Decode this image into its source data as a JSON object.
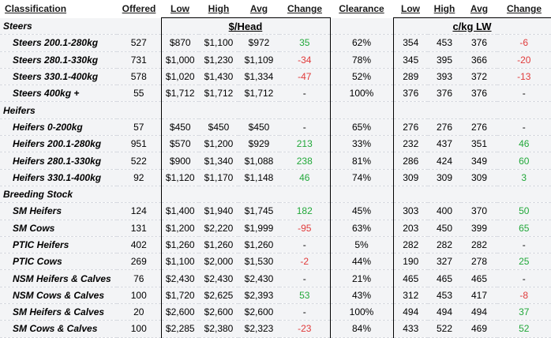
{
  "headers": {
    "classification": "Classification",
    "offered": "Offered",
    "low": "Low",
    "high": "High",
    "avg": "Avg",
    "change": "Change",
    "clearance": "Clearance",
    "low2": "Low",
    "high2": "High",
    "avg2": "Avg",
    "change2": "Change"
  },
  "units": {
    "per_head": "$/Head",
    "per_kg": "c/kg LW"
  },
  "sections": [
    {
      "title": "Steers",
      "rows": [
        {
          "name": "Steers 200.1-280kg",
          "offered": "527",
          "low": "$870",
          "high": "$1,100",
          "avg": "$972",
          "change": "35",
          "change_dir": "pos",
          "clearance": "62%",
          "low_c": "354",
          "high_c": "453",
          "avg_c": "376",
          "change_c": "-6",
          "change_c_dir": "neg"
        },
        {
          "name": "Steers 280.1-330kg",
          "offered": "731",
          "low": "$1,000",
          "high": "$1,230",
          "avg": "$1,109",
          "change": "-34",
          "change_dir": "neg",
          "clearance": "78%",
          "low_c": "345",
          "high_c": "395",
          "avg_c": "366",
          "change_c": "-20",
          "change_c_dir": "neg"
        },
        {
          "name": "Steers 330.1-400kg",
          "offered": "578",
          "low": "$1,020",
          "high": "$1,430",
          "avg": "$1,334",
          "change": "-47",
          "change_dir": "neg",
          "clearance": "52%",
          "low_c": "289",
          "high_c": "393",
          "avg_c": "372",
          "change_c": "-13",
          "change_c_dir": "neg"
        },
        {
          "name": "Steers 400kg +",
          "offered": "55",
          "low": "$1,712",
          "high": "$1,712",
          "avg": "$1,712",
          "change": "-",
          "change_dir": "neu",
          "clearance": "100%",
          "low_c": "376",
          "high_c": "376",
          "avg_c": "376",
          "change_c": "-",
          "change_c_dir": "neu"
        }
      ]
    },
    {
      "title": "Heifers",
      "rows": [
        {
          "name": "Heifers 0-200kg",
          "offered": "57",
          "low": "$450",
          "high": "$450",
          "avg": "$450",
          "change": "-",
          "change_dir": "neu",
          "clearance": "65%",
          "low_c": "276",
          "high_c": "276",
          "avg_c": "276",
          "change_c": "-",
          "change_c_dir": "neu"
        },
        {
          "name": "Heifers 200.1-280kg",
          "offered": "951",
          "low": "$570",
          "high": "$1,200",
          "avg": "$929",
          "change": "213",
          "change_dir": "pos",
          "clearance": "33%",
          "low_c": "232",
          "high_c": "437",
          "avg_c": "351",
          "change_c": "46",
          "change_c_dir": "pos"
        },
        {
          "name": "Heifers 280.1-330kg",
          "offered": "522",
          "low": "$900",
          "high": "$1,340",
          "avg": "$1,088",
          "change": "238",
          "change_dir": "pos",
          "clearance": "81%",
          "low_c": "286",
          "high_c": "424",
          "avg_c": "349",
          "change_c": "60",
          "change_c_dir": "pos"
        },
        {
          "name": "Heifers 330.1-400kg",
          "offered": "92",
          "low": "$1,120",
          "high": "$1,170",
          "avg": "$1,148",
          "change": "46",
          "change_dir": "pos",
          "clearance": "74%",
          "low_c": "309",
          "high_c": "309",
          "avg_c": "309",
          "change_c": "3",
          "change_c_dir": "pos"
        }
      ]
    },
    {
      "title": "Breeding Stock",
      "rows": [
        {
          "name": "SM Heifers",
          "offered": "124",
          "low": "$1,400",
          "high": "$1,940",
          "avg": "$1,745",
          "change": "182",
          "change_dir": "pos",
          "clearance": "45%",
          "low_c": "303",
          "high_c": "400",
          "avg_c": "370",
          "change_c": "50",
          "change_c_dir": "pos"
        },
        {
          "name": "SM Cows",
          "offered": "131",
          "low": "$1,200",
          "high": "$2,220",
          "avg": "$1,999",
          "change": "-95",
          "change_dir": "neg",
          "clearance": "63%",
          "low_c": "203",
          "high_c": "450",
          "avg_c": "399",
          "change_c": "65",
          "change_c_dir": "pos"
        },
        {
          "name": "PTIC Heifers",
          "offered": "402",
          "low": "$1,260",
          "high": "$1,260",
          "avg": "$1,260",
          "change": "-",
          "change_dir": "neu",
          "clearance": "5%",
          "low_c": "282",
          "high_c": "282",
          "avg_c": "282",
          "change_c": "-",
          "change_c_dir": "neu"
        },
        {
          "name": "PTIC Cows",
          "offered": "269",
          "low": "$1,100",
          "high": "$2,000",
          "avg": "$1,530",
          "change": "-2",
          "change_dir": "neg",
          "clearance": "44%",
          "low_c": "190",
          "high_c": "327",
          "avg_c": "278",
          "change_c": "25",
          "change_c_dir": "pos"
        },
        {
          "name": "NSM Heifers & Calves",
          "offered": "76",
          "low": "$2,430",
          "high": "$2,430",
          "avg": "$2,430",
          "change": "-",
          "change_dir": "neu",
          "clearance": "21%",
          "low_c": "465",
          "high_c": "465",
          "avg_c": "465",
          "change_c": "-",
          "change_c_dir": "neu"
        },
        {
          "name": "NSM Cows & Calves",
          "offered": "100",
          "low": "$1,720",
          "high": "$2,625",
          "avg": "$2,393",
          "change": "53",
          "change_dir": "pos",
          "clearance": "43%",
          "low_c": "312",
          "high_c": "453",
          "avg_c": "417",
          "change_c": "-8",
          "change_c_dir": "neg"
        },
        {
          "name": "SM Heifers & Calves",
          "offered": "20",
          "low": "$2,600",
          "high": "$2,600",
          "avg": "$2,600",
          "change": "-",
          "change_dir": "neu",
          "clearance": "100%",
          "low_c": "494",
          "high_c": "494",
          "avg_c": "494",
          "change_c": "37",
          "change_c_dir": "pos"
        },
        {
          "name": "SM Cows & Calves",
          "offered": "100",
          "low": "$2,285",
          "high": "$2,380",
          "avg": "$2,323",
          "change": "-23",
          "change_dir": "neg",
          "clearance": "84%",
          "low_c": "433",
          "high_c": "522",
          "avg_c": "469",
          "change_c": "52",
          "change_c_dir": "pos"
        }
      ]
    }
  ],
  "colors": {
    "positive": "#22a83a",
    "negative": "#e03a3a",
    "row_bg": "#f3f4f6"
  }
}
